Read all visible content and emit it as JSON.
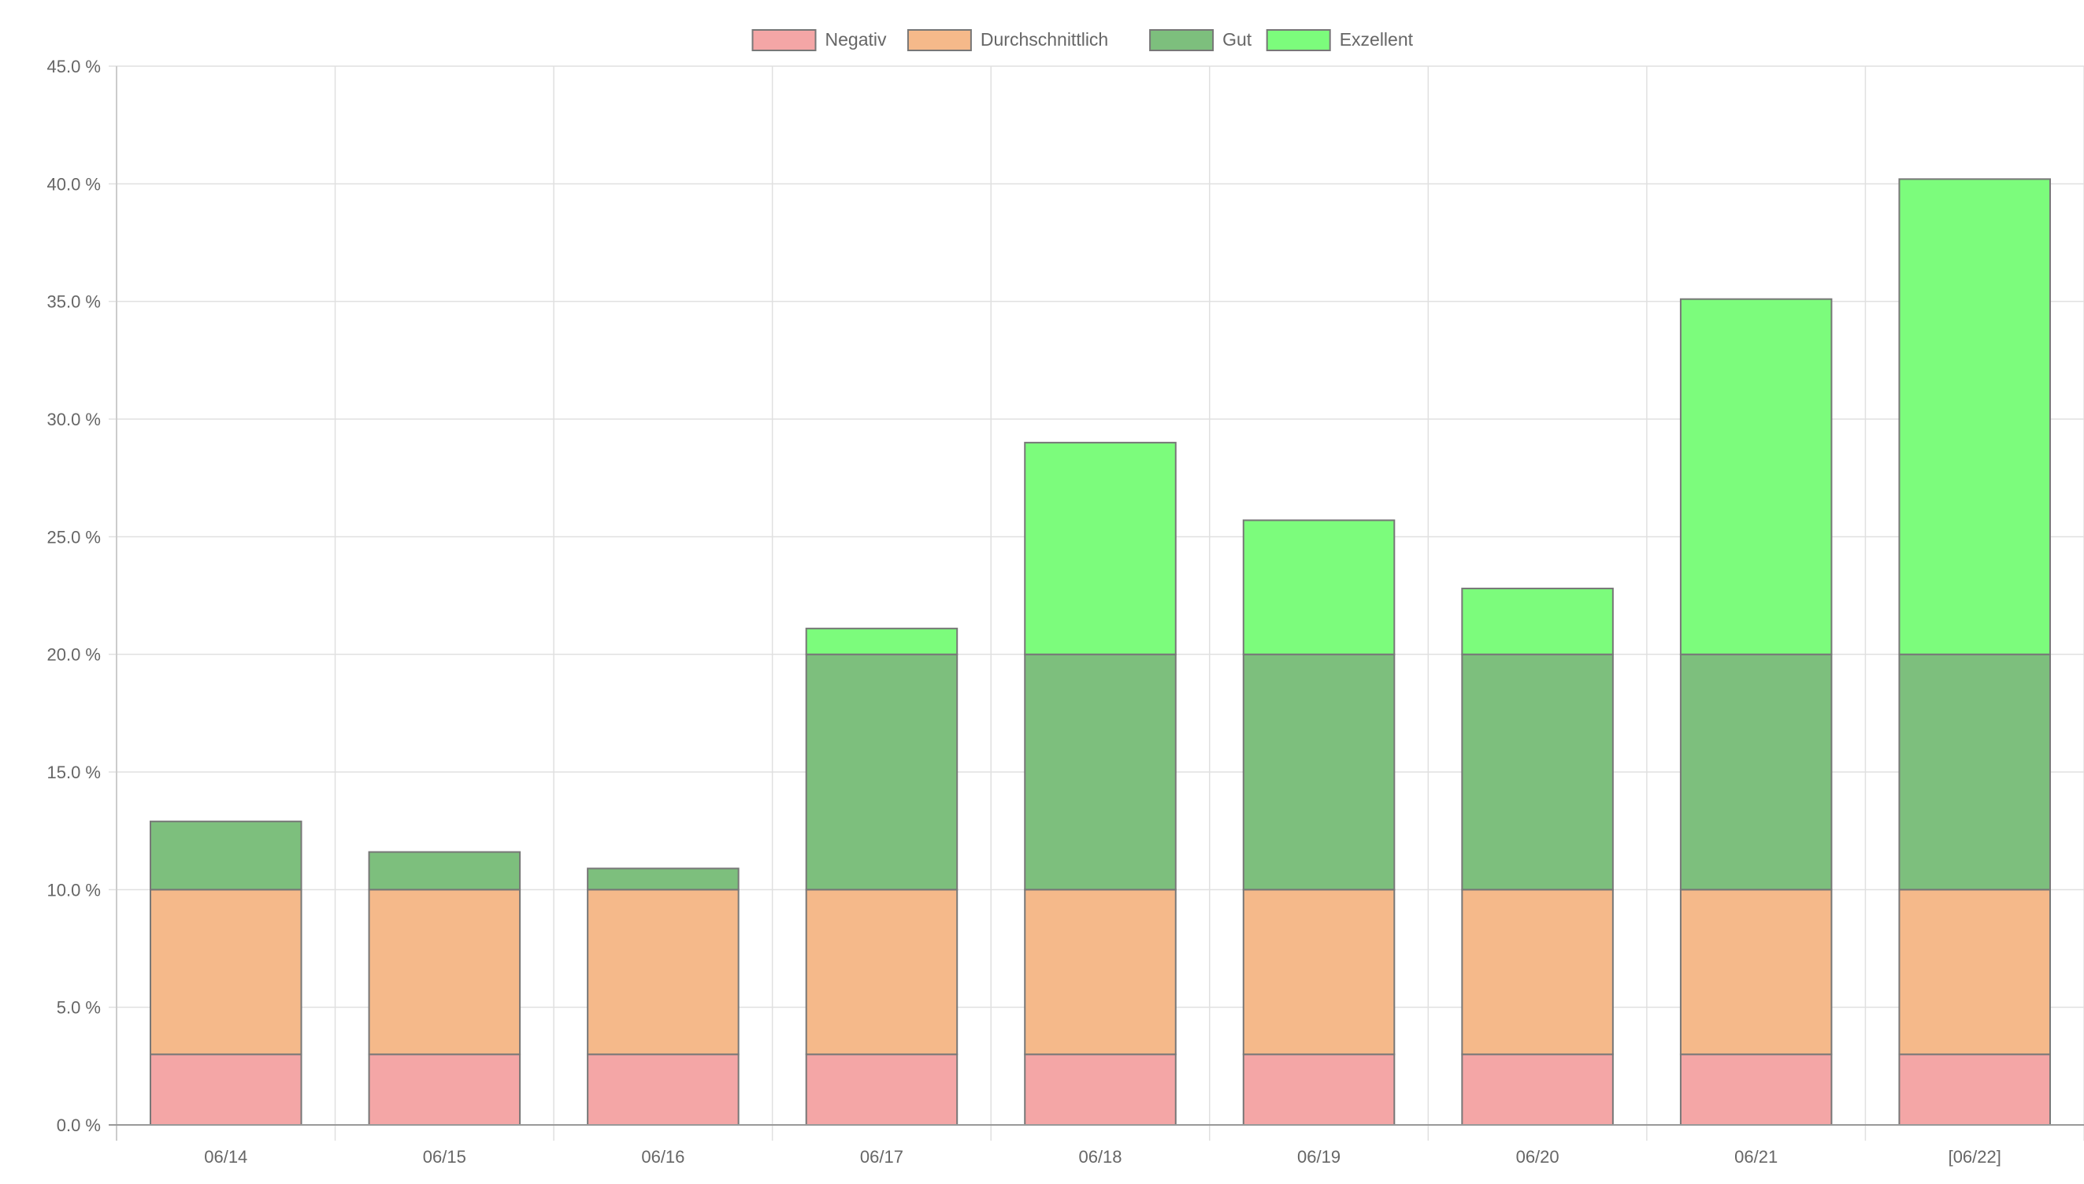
{
  "chart_data": {
    "type": "bar",
    "stacked": true,
    "categories": [
      "06/14",
      "06/15",
      "06/16",
      "06/17",
      "06/18",
      "06/19",
      "06/20",
      "06/21",
      "[06/22]"
    ],
    "series": [
      {
        "name": "Negativ",
        "color": "#f4a6a6",
        "values": [
          3,
          3,
          3,
          3,
          3,
          3,
          3,
          3,
          3
        ]
      },
      {
        "name": "Durchschnittlich",
        "color": "#f5b98a",
        "values": [
          7,
          7,
          7,
          7,
          7,
          7,
          7,
          7,
          7
        ]
      },
      {
        "name": "Gut",
        "color": "#7dbf7d",
        "values": [
          2.9,
          1.6,
          0.9,
          10,
          10,
          10,
          10,
          10,
          10
        ]
      },
      {
        "name": "Exzellent",
        "color": "#7cfc7c",
        "values": [
          0,
          0,
          0,
          1.1,
          9,
          5.7,
          2.8,
          15.1,
          20.2
        ]
      }
    ],
    "ylim": [
      0,
      45
    ],
    "yticks": [
      "0.0 %",
      "5.0 %",
      "10.0 %",
      "15.0 %",
      "20.0 %",
      "25.0 %",
      "30.0 %",
      "35.0 %",
      "40.0 %",
      "45.0 %"
    ],
    "ytick_values": [
      0,
      5,
      10,
      15,
      20,
      25,
      30,
      35,
      40,
      45
    ],
    "grid": true,
    "legend_position": "top-center",
    "title": "",
    "xlabel": "",
    "ylabel": ""
  }
}
